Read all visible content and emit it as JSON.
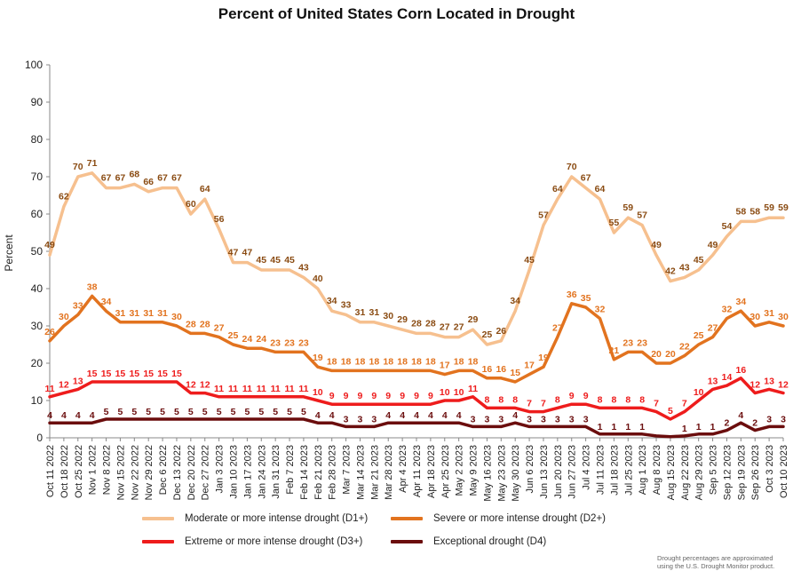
{
  "chart_data": {
    "type": "line",
    "title": "Percent of United States Corn Located in Drought",
    "ylabel": "Percent",
    "xlabel": "",
    "ylim": [
      0,
      100
    ],
    "yticks": [
      0,
      10,
      20,
      30,
      40,
      50,
      60,
      70,
      80,
      90,
      100
    ],
    "grid": false,
    "legend_position": "bottom",
    "x": [
      "Oct 11 2022",
      "Oct 18 2022",
      "Oct 25 2022",
      "Nov 1 2022",
      "Nov 8 2022",
      "Nov 15 2022",
      "Nov 22 2022",
      "Nov 29 2022",
      "Dec 6 2022",
      "Dec 13 2022",
      "Dec 20 2022",
      "Dec 27 2022",
      "Jan 3 2023",
      "Jan 10 2023",
      "Jan 17 2023",
      "Jan 24 2023",
      "Jan 31 2023",
      "Feb 7 2023",
      "Feb 14 2023",
      "Feb 21 2023",
      "Feb 28 2023",
      "Mar 7 2023",
      "Mar 14 2023",
      "Mar 21 2023",
      "Mar 28 2023",
      "Apr 4 2023",
      "Apr 11 2023",
      "Apr 18 2023",
      "Apr 25 2023",
      "May 2 2023",
      "May 9 2023",
      "May 16 2023",
      "May 23 2023",
      "May 30 2023",
      "Jun 6 2023",
      "Jun 13 2023",
      "Jun 20 2023",
      "Jun 27 2023",
      "Jul 4 2023",
      "Jul 11 2023",
      "Jul 18 2023",
      "Jul 25 2023",
      "Aug 1 2023",
      "Aug 8 2023",
      "Aug 15 2023",
      "Aug 22 2023",
      "Aug 29 2023",
      "Sep 5 2023",
      "Sep 12 2023",
      "Sep 19 2023",
      "Sep 26 2023",
      "Oct 3 2023",
      "Oct 10 2023"
    ],
    "series": [
      {
        "name": "Moderate or more intense drought (D1+)",
        "color": "#f6c08f",
        "values": [
          49,
          62,
          70,
          71,
          67,
          67,
          68,
          66,
          67,
          67,
          60,
          64,
          56,
          47,
          47,
          45,
          45,
          45,
          43,
          40,
          34,
          33,
          31,
          31,
          30,
          29,
          28,
          28,
          27,
          27,
          29,
          25,
          26,
          34,
          45,
          57,
          64,
          70,
          67,
          64,
          55,
          59,
          57,
          49,
          42,
          43,
          45,
          49,
          54,
          58,
          58,
          59,
          59
        ],
        "labels": [
          "49",
          "62",
          "70",
          "71",
          "67",
          "67",
          "68",
          "66",
          "67",
          "67",
          "60",
          "64",
          "56",
          "47",
          "47",
          "45",
          "45",
          "45",
          "43",
          "40",
          "34",
          "33",
          "31",
          "31",
          "30",
          "29",
          "28",
          "28",
          "27",
          "27",
          "29",
          "25",
          "26",
          "34",
          "45",
          "57",
          "64",
          "70",
          "67",
          "64",
          "55",
          "59",
          "57",
          "49",
          "42",
          "43",
          "45",
          "49",
          "54",
          "58",
          "58",
          "59",
          "59"
        ]
      },
      {
        "name": "Severe or more intense drought (D2+)",
        "color": "#e2731f",
        "values": [
          26,
          30,
          33,
          38,
          34,
          31,
          31,
          31,
          31,
          30,
          28,
          28,
          27,
          25,
          24,
          24,
          23,
          23,
          23,
          19,
          18,
          18,
          18,
          18,
          18,
          18,
          18,
          18,
          17,
          18,
          18,
          16,
          16,
          15,
          17,
          19,
          27,
          36,
          35,
          32,
          21,
          23,
          23,
          20,
          20,
          22,
          25,
          27,
          32,
          34,
          30,
          31,
          30
        ],
        "labels": [
          "26",
          "30",
          "33",
          "38",
          "34",
          "31",
          "31",
          "31",
          "31",
          "30",
          "28",
          "28",
          "27",
          "25",
          "24",
          "24",
          "23",
          "23",
          "23",
          "19",
          "18",
          "18",
          "18",
          "18",
          "18",
          "18",
          "18",
          "18",
          "17",
          "18",
          "18",
          "16",
          "16",
          "15",
          "17",
          "19",
          "27",
          "36",
          "35",
          "32",
          "21",
          "23",
          "23",
          "20",
          "20",
          "22",
          "25",
          "27",
          "32",
          "34",
          "30",
          "31",
          "30"
        ]
      },
      {
        "name": "Extreme or more intense drought (D3+)",
        "color": "#ee1c1c",
        "values": [
          11,
          12,
          13,
          15,
          15,
          15,
          15,
          15,
          15,
          15,
          12,
          12,
          11,
          11,
          11,
          11,
          11,
          11,
          11,
          10,
          9,
          9,
          9,
          9,
          9,
          9,
          9,
          9,
          10,
          10,
          11,
          8,
          8,
          8,
          7,
          7,
          8,
          9,
          9,
          8,
          8,
          8,
          8,
          7,
          5,
          7,
          10,
          13,
          14,
          16,
          12,
          13,
          12
        ],
        "labels": [
          "11",
          "12",
          "13",
          "15",
          "15",
          "15",
          "15",
          "15",
          "15",
          "15",
          "12",
          "12",
          "11",
          "11",
          "11",
          "11",
          "11",
          "11",
          "11",
          "10",
          "9",
          "9",
          "9",
          "9",
          "9",
          "9",
          "9",
          "9",
          "10",
          "10",
          "11",
          "8",
          "8",
          "8",
          "7",
          "7",
          "8",
          "9",
          "9",
          "8",
          "8",
          "8",
          "8",
          "7",
          "5",
          "7",
          "10",
          "13",
          "14",
          "16",
          "12",
          "13",
          "12"
        ]
      },
      {
        "name": "Exceptional drought (D4)",
        "color": "#6b0d0d",
        "values": [
          4,
          4,
          4,
          4,
          5,
          5,
          5,
          5,
          5,
          5,
          5,
          5,
          5,
          5,
          5,
          5,
          5,
          5,
          5,
          4,
          4,
          3,
          3,
          3,
          4,
          4,
          4,
          4,
          4,
          4,
          3,
          3,
          3,
          4,
          3,
          3,
          3,
          3,
          3,
          1,
          1,
          1,
          1,
          0.5,
          0.3,
          0.5,
          1,
          1,
          2,
          4,
          2,
          3,
          3
        ],
        "labels": [
          "4",
          "4",
          "4",
          "4",
          "5",
          "5",
          "5",
          "5",
          "5",
          "5",
          "5",
          "5",
          "5",
          "5",
          "5",
          "5",
          "5",
          "5",
          "5",
          "4",
          "4",
          "3",
          "3",
          "3",
          "4",
          "4",
          "4",
          "4",
          "4",
          "4",
          "3",
          "3",
          "3",
          "4",
          "3",
          "3",
          "3",
          "3",
          "3",
          "1",
          "1",
          "1",
          "1",
          "",
          "",
          "1",
          "1",
          "1",
          "2",
          "4",
          "2",
          "3",
          "3"
        ]
      }
    ]
  },
  "footnote": {
    "line1": "Drought percentages are approximated",
    "line2": "using the U.S. Drought Monitor product."
  }
}
